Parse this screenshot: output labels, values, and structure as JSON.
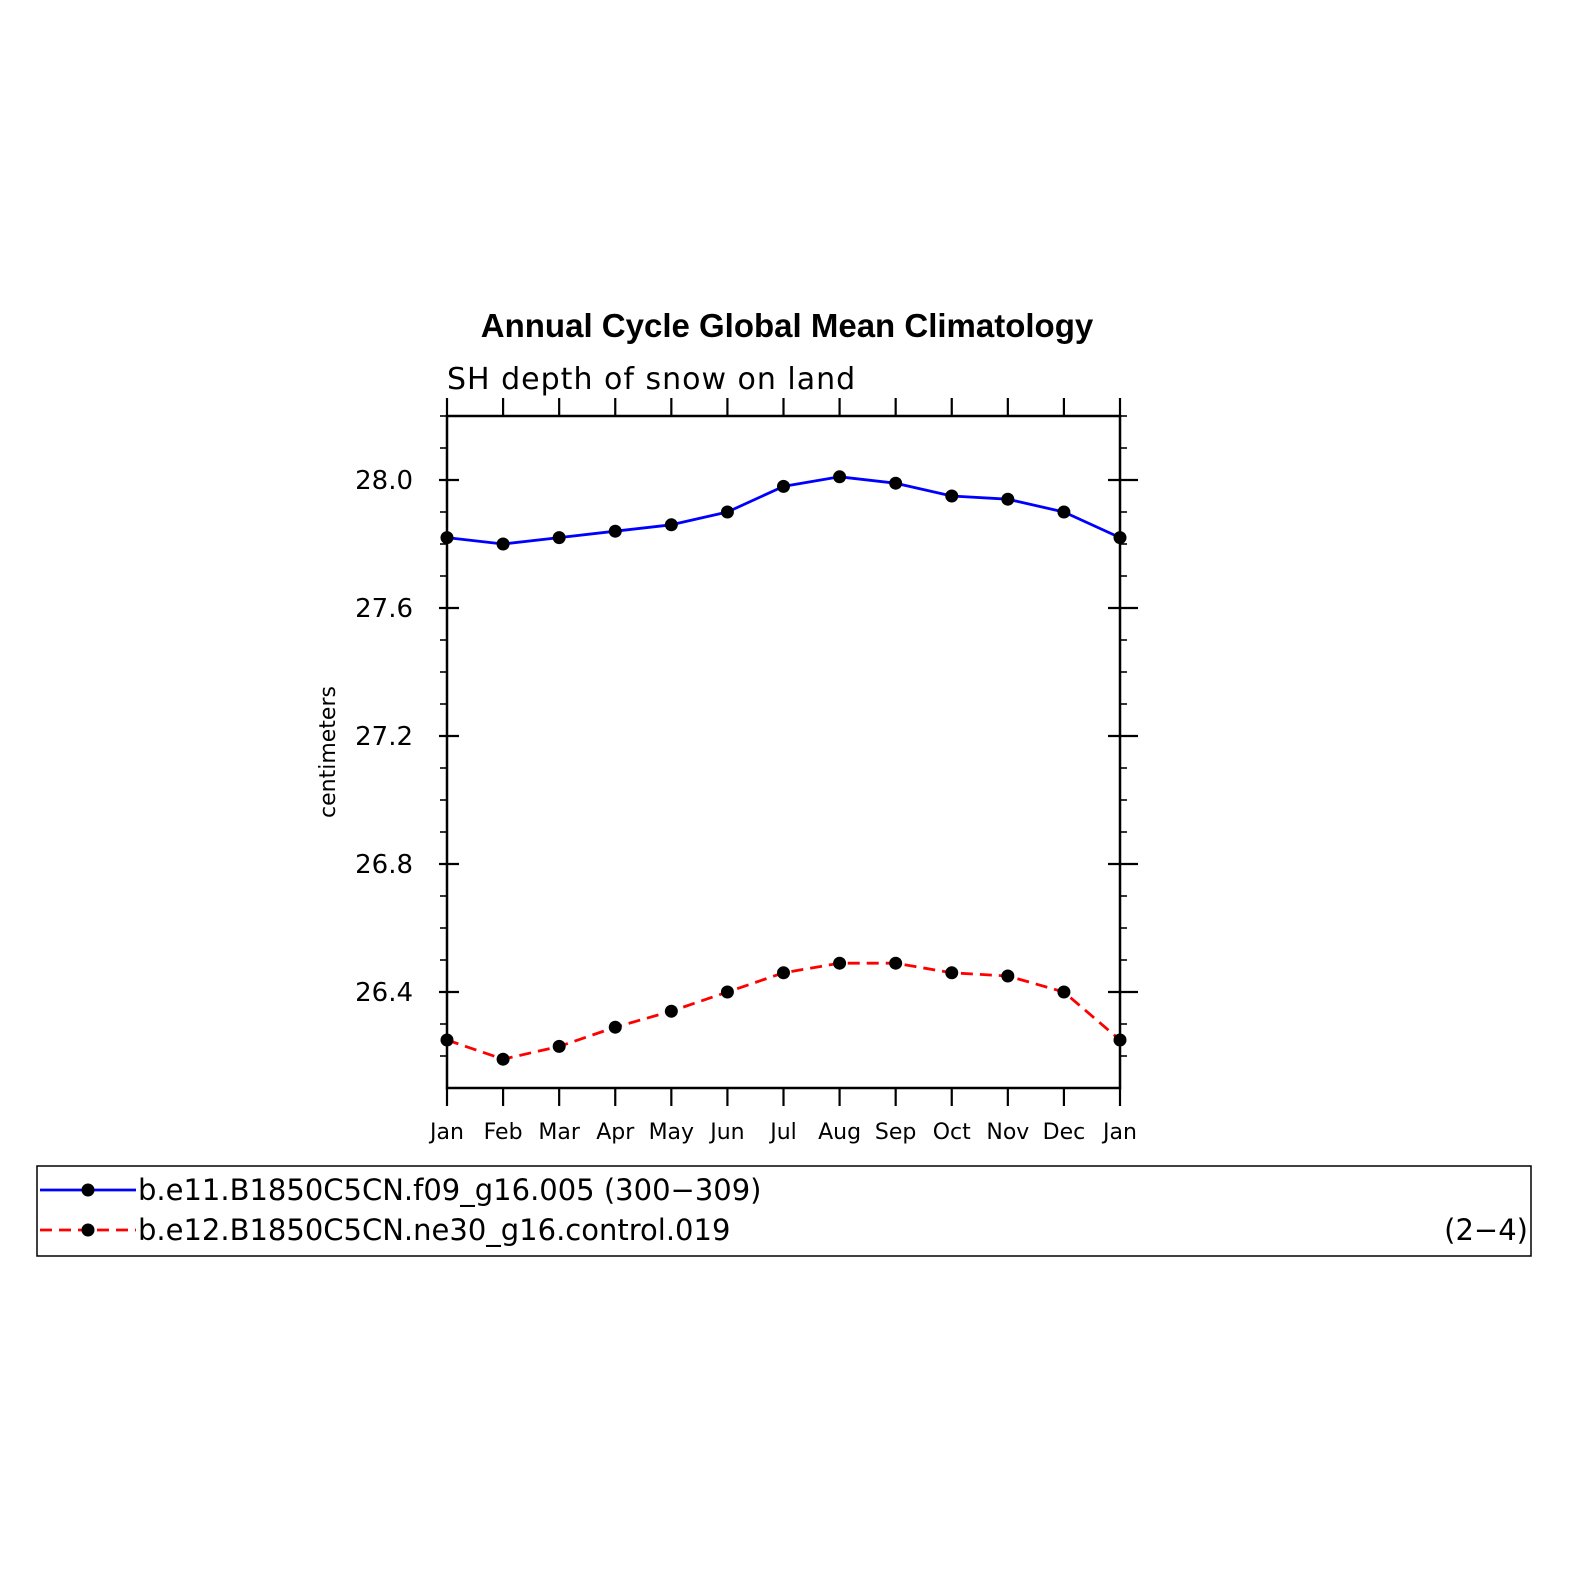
{
  "chart_data": {
    "type": "line",
    "title": "Annual Cycle Global Mean Climatology",
    "subtitle": "SH depth of snow on land",
    "ylabel": "centimeters",
    "xlabel": "",
    "categories": [
      "Jan",
      "Feb",
      "Mar",
      "Apr",
      "May",
      "Jun",
      "Jul",
      "Aug",
      "Sep",
      "Oct",
      "Nov",
      "Dec",
      "Jan"
    ],
    "ylim": [
      26.1,
      28.2
    ],
    "yticks": [
      26.4,
      26.8,
      27.2,
      27.6,
      28.0
    ],
    "ytick_labels": [
      "26.4",
      "26.8",
      "27.2",
      "27.6",
      "28.0"
    ],
    "yminor_step": 0.1,
    "grid": false,
    "legend_position": "bottom",
    "series": [
      {
        "name": "b.e11.B1850C5CN.f09_g16.005 (300−309)",
        "color": "#0000ff",
        "dash": "solid",
        "marker": "filled-circle",
        "values": [
          27.82,
          27.8,
          27.82,
          27.84,
          27.86,
          27.9,
          27.98,
          28.01,
          27.99,
          27.95,
          27.94,
          27.9,
          27.82
        ]
      },
      {
        "name": "b.e12.B1850C5CN.ne30_g16.control.019",
        "suffix": "(2−4)",
        "color": "#ff0000",
        "dash": "dashed",
        "marker": "filled-circle",
        "values": [
          26.25,
          26.19,
          26.23,
          26.29,
          26.34,
          26.4,
          26.46,
          26.49,
          26.49,
          26.46,
          26.45,
          26.4,
          26.25
        ]
      }
    ]
  }
}
